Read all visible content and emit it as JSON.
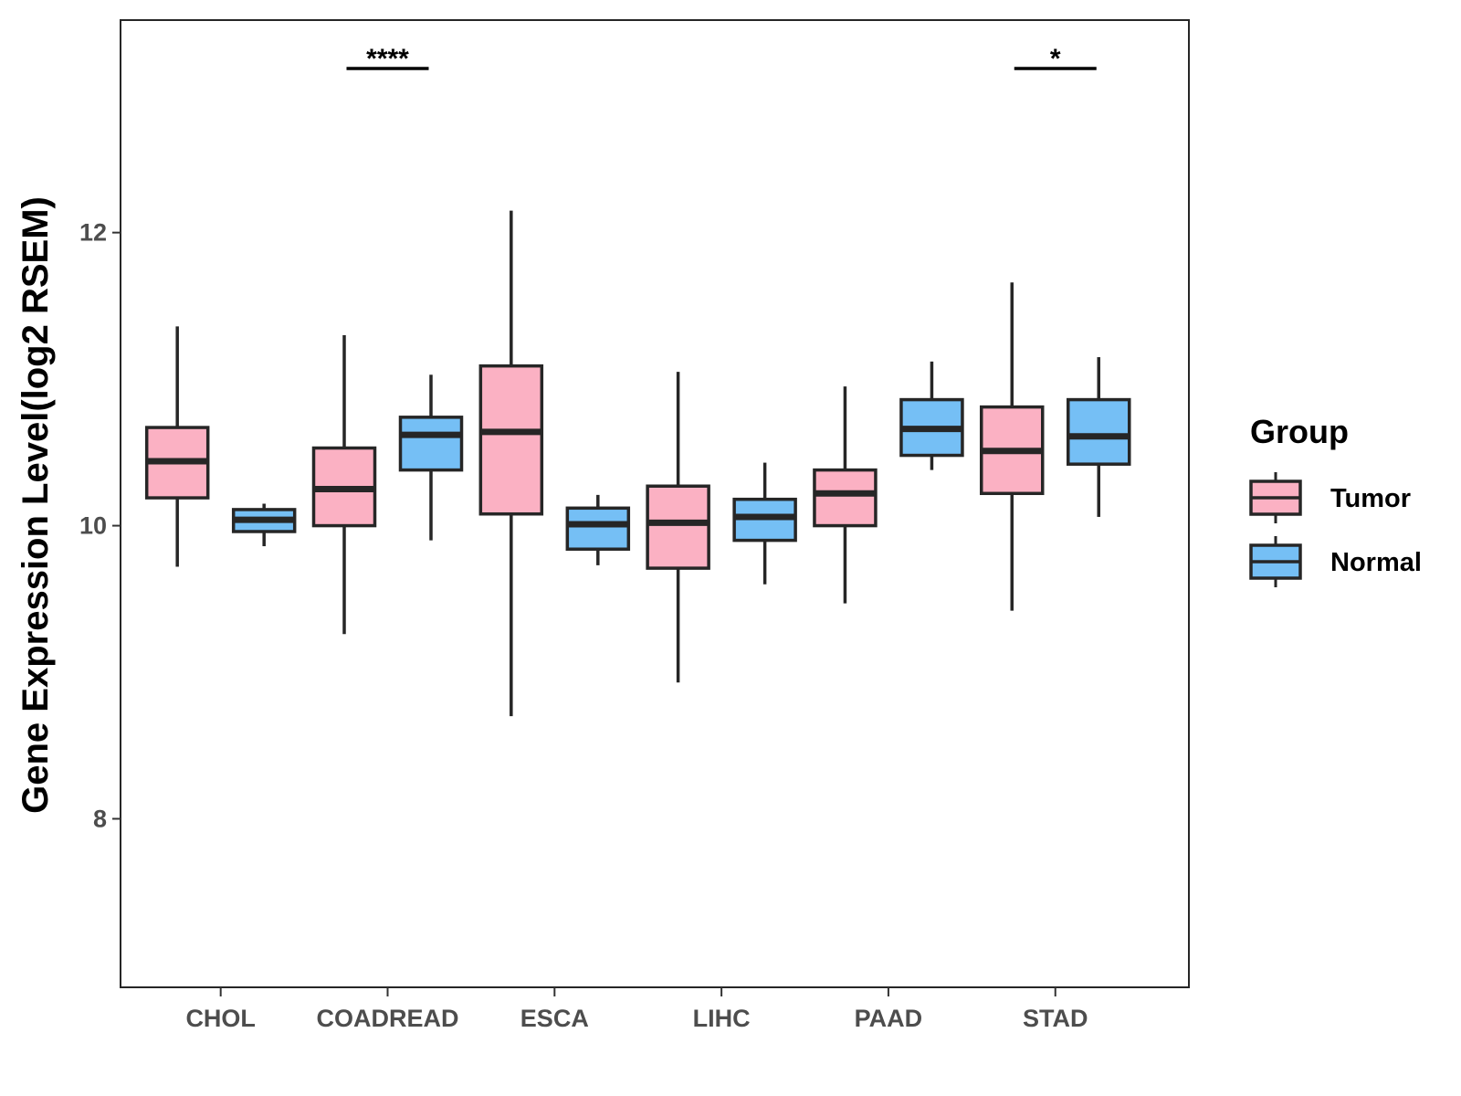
{
  "chart_data": {
    "type": "boxplot",
    "title": "",
    "xlabel": "",
    "ylabel": "Gene Expression Level(log2 RSEM)",
    "ylim": [
      6.85,
      13.45
    ],
    "y_ticks": [
      8,
      10,
      12
    ],
    "y_tick_labels": [
      "8",
      "10",
      "12"
    ],
    "categories": [
      "CHOL",
      "COADREAD",
      "ESCA",
      "LIHC",
      "PAAD",
      "STAD"
    ],
    "legend": {
      "title": "Group",
      "position": "right",
      "entries": [
        "Tumor",
        "Normal"
      ]
    },
    "colors": {
      "Tumor": "#fbb1c3",
      "Normal": "#75bff5",
      "outline": "#262626"
    },
    "series": [
      {
        "name": "Tumor",
        "boxes": [
          {
            "category": "CHOL",
            "min": 9.72,
            "q1": 10.19,
            "median": 10.44,
            "q3": 10.67,
            "max": 11.36
          },
          {
            "category": "COADREAD",
            "min": 9.26,
            "q1": 10.0,
            "median": 10.25,
            "q3": 10.53,
            "max": 11.3
          },
          {
            "category": "ESCA",
            "min": 8.7,
            "q1": 10.08,
            "median": 10.64,
            "q3": 11.09,
            "max": 12.15
          },
          {
            "category": "LIHC",
            "min": 8.93,
            "q1": 9.71,
            "median": 10.02,
            "q3": 10.27,
            "max": 11.05
          },
          {
            "category": "PAAD",
            "min": 9.47,
            "q1": 10.0,
            "median": 10.22,
            "q3": 10.38,
            "max": 10.95
          },
          {
            "category": "STAD",
            "min": 9.42,
            "q1": 10.22,
            "median": 10.51,
            "q3": 10.81,
            "max": 11.66
          }
        ]
      },
      {
        "name": "Normal",
        "boxes": [
          {
            "category": "CHOL",
            "min": 9.86,
            "q1": 9.96,
            "median": 10.04,
            "q3": 10.11,
            "max": 10.15
          },
          {
            "category": "COADREAD",
            "min": 9.9,
            "q1": 10.38,
            "median": 10.62,
            "q3": 10.74,
            "max": 11.03
          },
          {
            "category": "ESCA",
            "min": 9.73,
            "q1": 9.84,
            "median": 10.01,
            "q3": 10.12,
            "max": 10.21
          },
          {
            "category": "LIHC",
            "min": 9.6,
            "q1": 9.9,
            "median": 10.06,
            "q3": 10.18,
            "max": 10.43
          },
          {
            "category": "PAAD",
            "min": 10.38,
            "q1": 10.48,
            "median": 10.66,
            "q3": 10.86,
            "max": 11.12
          },
          {
            "category": "STAD",
            "min": 10.06,
            "q1": 10.42,
            "median": 10.61,
            "q3": 10.86,
            "max": 11.15
          }
        ]
      }
    ],
    "annotations": [
      {
        "category": "COADREAD",
        "label": "****",
        "y": 13.12
      },
      {
        "category": "STAD",
        "label": "*",
        "y": 13.12
      }
    ],
    "grid": false
  }
}
